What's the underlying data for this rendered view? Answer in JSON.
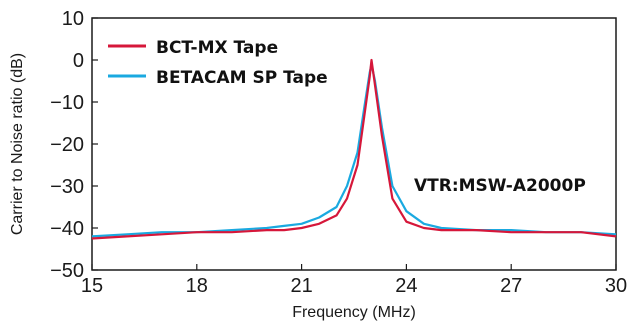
{
  "chart_data": {
    "type": "line",
    "title": "",
    "xlabel": "Frequency (MHz)",
    "ylabel": "Carrier to Noise ratio (dB)",
    "xlim": [
      15,
      30
    ],
    "ylim": [
      -50,
      10
    ],
    "x_ticks": [
      "15",
      "18",
      "21",
      "24",
      "27",
      "30"
    ],
    "y_ticks": [
      "10",
      "0",
      "−10",
      "−20",
      "−30",
      "−40",
      "−50"
    ],
    "grid": false,
    "legend_position": "top-left",
    "annotation": "VTR:MSW-A2000P",
    "x": [
      15,
      16,
      17,
      18,
      19,
      20,
      20.5,
      21,
      21.5,
      22,
      22.3,
      22.6,
      22.8,
      22.95,
      23.0,
      23.1,
      23.3,
      23.6,
      24,
      24.5,
      25,
      26,
      27,
      28,
      29,
      30
    ],
    "series": [
      {
        "name": "BCT-MX Tape",
        "color": "#d6173a",
        "values": [
          -42.5,
          -42,
          -41.5,
          -41,
          -41,
          -40.5,
          -40.5,
          -40,
          -39,
          -37,
          -33,
          -25,
          -13,
          -4,
          0,
          -6,
          -18,
          -33,
          -38.5,
          -40,
          -40.5,
          -40.5,
          -41,
          -41,
          -41,
          -42
        ]
      },
      {
        "name": "BETACAM SP Tape",
        "color": "#1aa9e0",
        "values": [
          -42,
          -41.5,
          -41,
          -41,
          -40.5,
          -40,
          -39.5,
          -39,
          -37.5,
          -35,
          -30,
          -22,
          -11,
          -3,
          -1,
          -5,
          -16,
          -30,
          -36,
          -39,
          -40,
          -40.5,
          -40.5,
          -41,
          -41,
          -41.5
        ]
      }
    ]
  }
}
